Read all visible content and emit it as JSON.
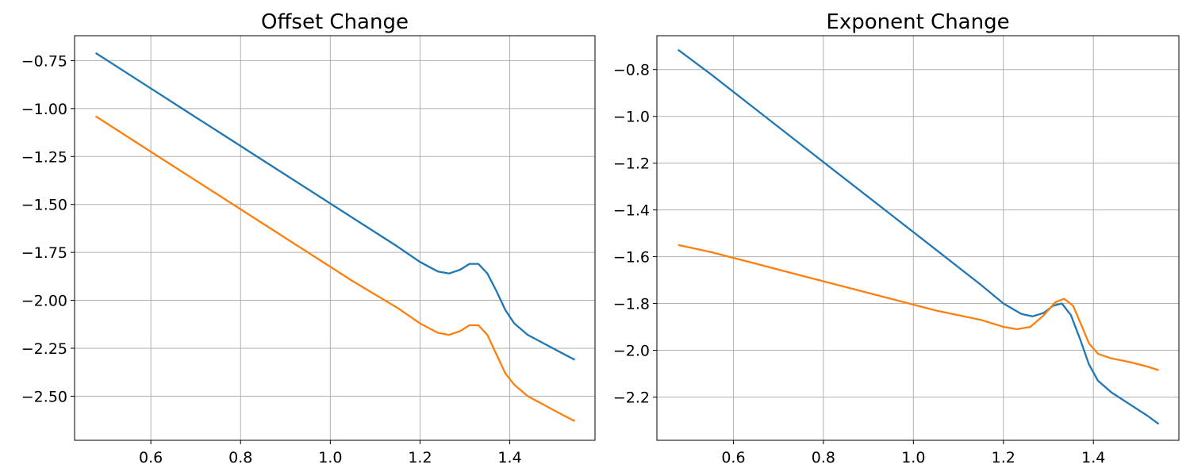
{
  "chart_data": [
    {
      "type": "line",
      "title": "Offset Change",
      "xlabel": "",
      "ylabel": "",
      "xlim": [
        0.43,
        1.59
      ],
      "ylim": [
        -2.73,
        -0.62
      ],
      "grid": true,
      "xticks": [
        0.6,
        0.8,
        1.0,
        1.2,
        1.4
      ],
      "xtick_labels": [
        "0.6",
        "0.8",
        "1.0",
        "1.2",
        "1.4"
      ],
      "yticks": [
        -0.75,
        -1.0,
        -1.25,
        -1.5,
        -1.75,
        -2.0,
        -2.25,
        -2.5
      ],
      "ytick_labels": [
        "−0.75",
        "−1.00",
        "−1.25",
        "−1.50",
        "−1.75",
        "−2.00",
        "−2.25",
        "−2.50"
      ],
      "series": [
        {
          "color": "#1f77b4",
          "x": [
            0.477,
            0.55,
            0.65,
            0.75,
            0.85,
            0.95,
            1.05,
            1.15,
            1.2,
            1.24,
            1.265,
            1.29,
            1.31,
            1.33,
            1.35,
            1.37,
            1.39,
            1.41,
            1.44,
            1.48,
            1.52,
            1.545
          ],
          "y": [
            -0.71,
            -0.82,
            -0.97,
            -1.12,
            -1.27,
            -1.42,
            -1.57,
            -1.72,
            -1.8,
            -1.85,
            -1.86,
            -1.84,
            -1.81,
            -1.81,
            -1.86,
            -1.95,
            -2.05,
            -2.12,
            -2.18,
            -2.23,
            -2.28,
            -2.31
          ]
        },
        {
          "color": "#ff7f0e",
          "x": [
            0.477,
            0.55,
            0.65,
            0.75,
            0.85,
            0.95,
            1.05,
            1.15,
            1.2,
            1.24,
            1.265,
            1.29,
            1.31,
            1.33,
            1.35,
            1.37,
            1.39,
            1.41,
            1.44,
            1.48,
            1.52,
            1.545
          ],
          "y": [
            -1.04,
            -1.15,
            -1.3,
            -1.45,
            -1.6,
            -1.75,
            -1.9,
            -2.04,
            -2.12,
            -2.17,
            -2.18,
            -2.16,
            -2.13,
            -2.13,
            -2.18,
            -2.28,
            -2.38,
            -2.44,
            -2.5,
            -2.55,
            -2.6,
            -2.63
          ]
        }
      ]
    },
    {
      "type": "line",
      "title": "Exponent Change",
      "xlabel": "",
      "ylabel": "",
      "xlim": [
        0.43,
        1.59
      ],
      "ylim": [
        -2.385,
        -0.655
      ],
      "grid": true,
      "xticks": [
        0.6,
        0.8,
        1.0,
        1.2,
        1.4
      ],
      "xtick_labels": [
        "0.6",
        "0.8",
        "1.0",
        "1.2",
        "1.4"
      ],
      "yticks": [
        -0.8,
        -1.0,
        -1.2,
        -1.4,
        -1.6,
        -1.8,
        -2.0,
        -2.2
      ],
      "ytick_labels": [
        "−0.8",
        "−1.0",
        "−1.2",
        "−1.4",
        "−1.6",
        "−1.8",
        "−2.0",
        "−2.2"
      ],
      "series": [
        {
          "color": "#1f77b4",
          "x": [
            0.477,
            0.55,
            0.65,
            0.75,
            0.85,
            0.95,
            1.05,
            1.15,
            1.2,
            1.24,
            1.265,
            1.29,
            1.31,
            1.33,
            1.35,
            1.37,
            1.39,
            1.41,
            1.44,
            1.48,
            1.52,
            1.545
          ],
          "y": [
            -0.715,
            -0.82,
            -0.97,
            -1.12,
            -1.27,
            -1.42,
            -1.57,
            -1.72,
            -1.8,
            -1.845,
            -1.855,
            -1.84,
            -1.81,
            -1.8,
            -1.85,
            -1.95,
            -2.06,
            -2.13,
            -2.18,
            -2.23,
            -2.28,
            -2.315
          ]
        },
        {
          "color": "#ff7f0e",
          "x": [
            0.477,
            0.55,
            0.65,
            0.75,
            0.85,
            0.95,
            1.05,
            1.15,
            1.2,
            1.23,
            1.26,
            1.29,
            1.315,
            1.335,
            1.355,
            1.375,
            1.39,
            1.41,
            1.44,
            1.48,
            1.52,
            1.545
          ],
          "y": [
            -1.55,
            -1.58,
            -1.63,
            -1.68,
            -1.73,
            -1.78,
            -1.83,
            -1.87,
            -1.9,
            -1.91,
            -1.9,
            -1.85,
            -1.795,
            -1.78,
            -1.81,
            -1.9,
            -1.97,
            -2.015,
            -2.035,
            -2.05,
            -2.07,
            -2.085
          ]
        }
      ]
    }
  ]
}
